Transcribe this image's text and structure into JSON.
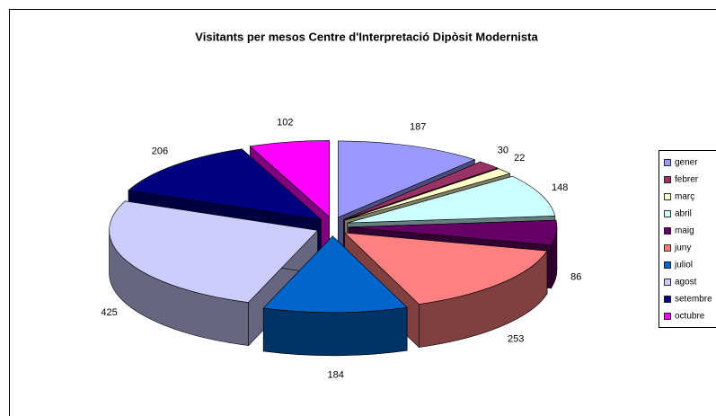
{
  "chart_data": {
    "type": "pie",
    "title": "Visitants per mesos Centre d'Interpretació Dipòsit Modernista",
    "categories": [
      "gener",
      "febrer",
      "març",
      "abril",
      "maig",
      "juny",
      "juliol",
      "agost",
      "setembre",
      "octubre"
    ],
    "values": [
      187,
      30,
      22,
      148,
      86,
      253,
      184,
      425,
      206,
      102
    ],
    "colors": [
      "#9999FF",
      "#993366",
      "#FFFFCC",
      "#CCFFFF",
      "#660066",
      "#FF8080",
      "#0066CC",
      "#CCCCFF",
      "#000080",
      "#FF00FF"
    ],
    "legend": "right"
  }
}
